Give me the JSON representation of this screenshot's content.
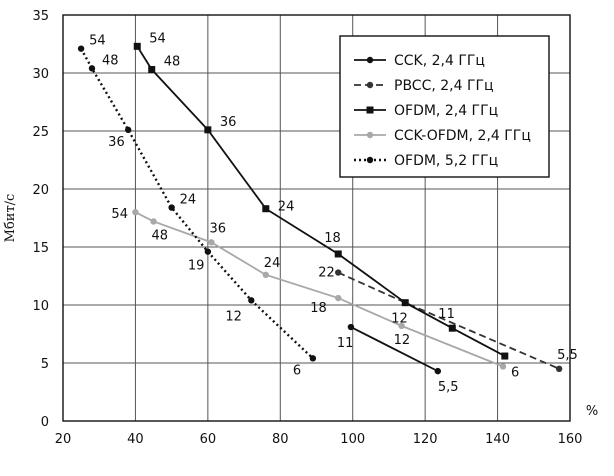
{
  "chart_data": {
    "type": "line",
    "title": "",
    "xlabel": "%",
    "ylabel": "Мбит/с",
    "xlim": [
      20,
      160
    ],
    "ylim": [
      0,
      35
    ],
    "xticks": [
      20,
      40,
      60,
      80,
      100,
      120,
      140,
      160
    ],
    "yticks": [
      0,
      5,
      10,
      15,
      20,
      25,
      30,
      35
    ],
    "grid": true,
    "legend_position": "top-right",
    "series": [
      {
        "name": "CCK, 2,4 ГГц",
        "color": "#111111",
        "line": "solid",
        "marker": "circle",
        "points": [
          {
            "x": 99.5,
            "y": 8.1,
            "label": "11"
          },
          {
            "x": 123.5,
            "y": 4.3,
            "label": "5,5"
          }
        ]
      },
      {
        "name": "PBCC, 2,4 ГГц",
        "color": "#333333",
        "line": "dashed",
        "marker": "circle",
        "points": [
          {
            "x": 96,
            "y": 12.8,
            "label": "22"
          },
          {
            "x": 114.5,
            "y": 10.2,
            "label": ""
          },
          {
            "x": 157,
            "y": 4.5,
            "label": "5,5"
          }
        ]
      },
      {
        "name": "OFDM, 2,4 ГГц",
        "color": "#111111",
        "line": "solid",
        "marker": "square",
        "points": [
          {
            "x": 40.5,
            "y": 32.3,
            "label": "54"
          },
          {
            "x": 44.5,
            "y": 30.3,
            "label": "48"
          },
          {
            "x": 60,
            "y": 25.1,
            "label": "36"
          },
          {
            "x": 76,
            "y": 18.3,
            "label": "24"
          },
          {
            "x": 96,
            "y": 14.4,
            "label": "18"
          },
          {
            "x": 114.5,
            "y": 10.2,
            "label": "12"
          },
          {
            "x": 127.5,
            "y": 8.0,
            "label": "11"
          },
          {
            "x": 142,
            "y": 5.6,
            "label": ""
          }
        ]
      },
      {
        "name": "CCK-OFDM, 2,4 ГГц",
        "color": "#a8a8a8",
        "line": "solid",
        "marker": "circle",
        "points": [
          {
            "x": 40,
            "y": 18.0,
            "label": "54"
          },
          {
            "x": 45,
            "y": 17.2,
            "label": "48"
          },
          {
            "x": 61,
            "y": 15.4,
            "label": "36"
          },
          {
            "x": 76,
            "y": 12.6,
            "label": "24"
          },
          {
            "x": 96,
            "y": 10.6,
            "label": "18"
          },
          {
            "x": 113.5,
            "y": 8.2,
            "label": "12"
          },
          {
            "x": 141.5,
            "y": 4.7,
            "label": "6"
          }
        ]
      },
      {
        "name": "OFDM, 5,2 ГГц",
        "color": "#111111",
        "line": "dotted",
        "marker": "circle",
        "points": [
          {
            "x": 25,
            "y": 32.1,
            "label": "54"
          },
          {
            "x": 28,
            "y": 30.4,
            "label": "48"
          },
          {
            "x": 38,
            "y": 25.1,
            "label": "36"
          },
          {
            "x": 50,
            "y": 18.4,
            "label": "24"
          },
          {
            "x": 60,
            "y": 14.6,
            "label": "19"
          },
          {
            "x": 72,
            "y": 10.4,
            "label": "12"
          },
          {
            "x": 89,
            "y": 5.4,
            "label": "6"
          }
        ]
      }
    ]
  }
}
